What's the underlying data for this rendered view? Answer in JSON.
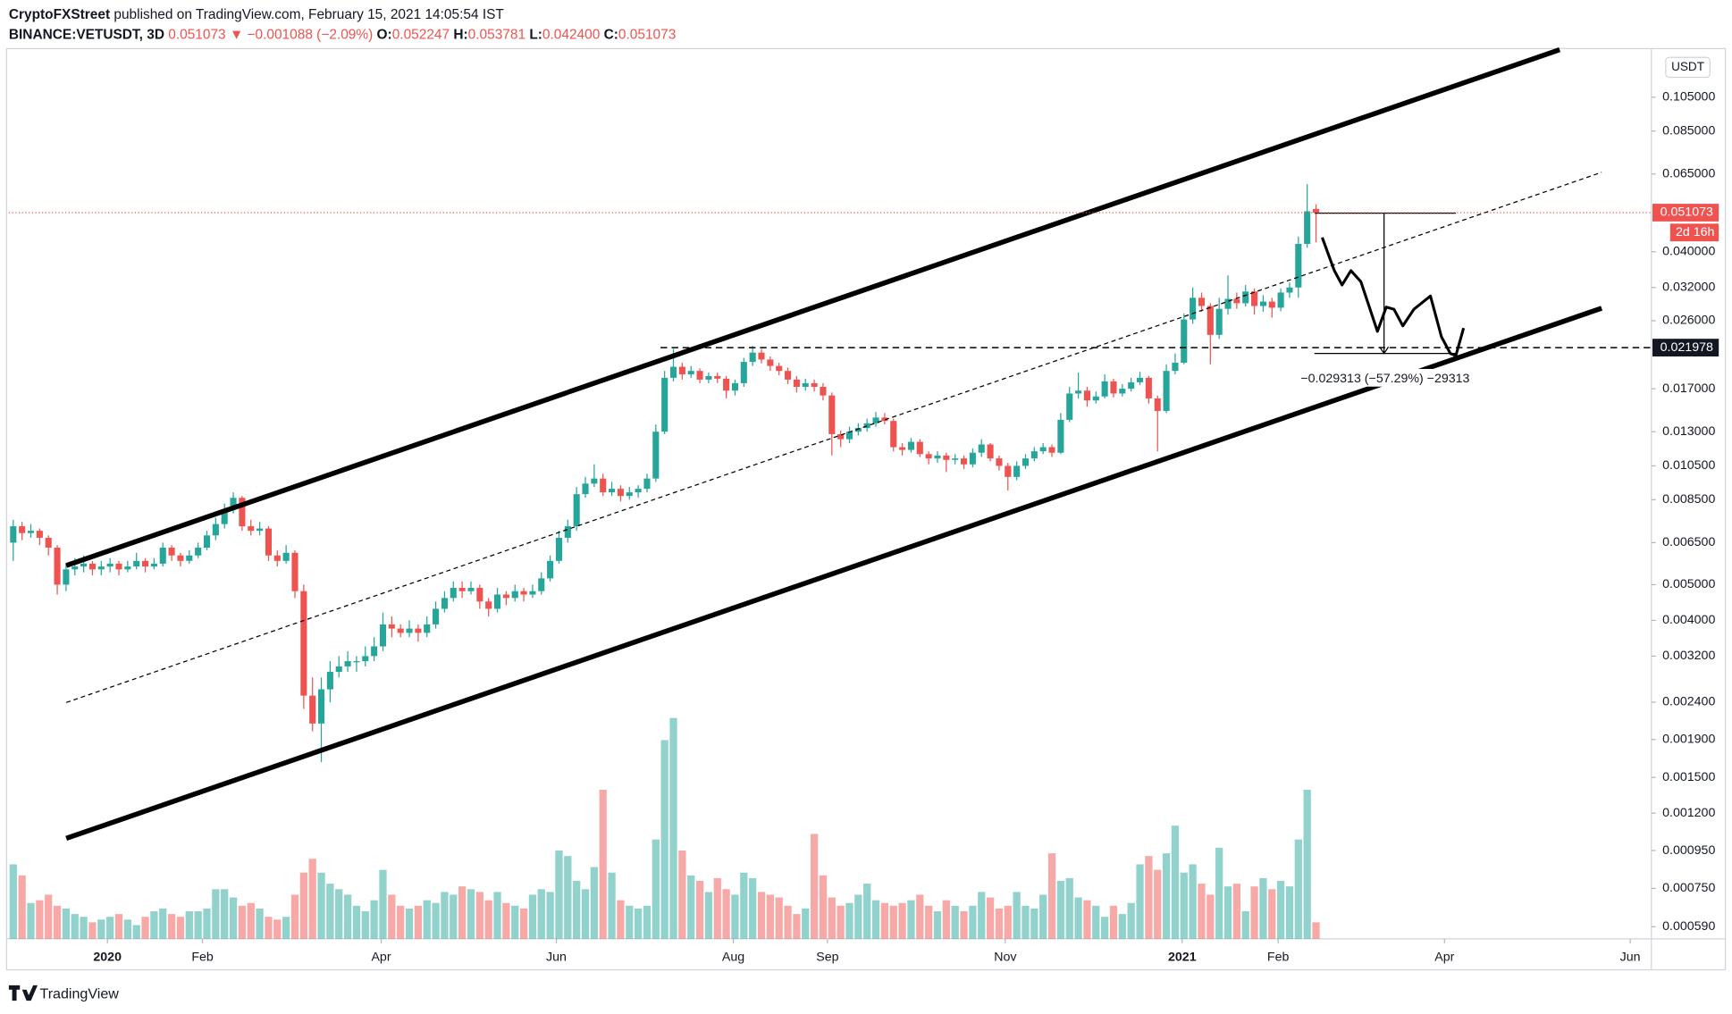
{
  "header": {
    "author": "CryptoFXStreet",
    "published": "published on TradingView.com, February 15, 2021 14:05:54 IST",
    "symbol": "BINANCE:VETUSDT, 3D",
    "last": "0.051073",
    "change": "▼ −0.001088 (−2.09%)",
    "ohlc": [
      {
        "key": "O:",
        "value": "0.052247"
      },
      {
        "key": "H:",
        "value": "0.053781"
      },
      {
        "key": "L:",
        "value": "0.042400"
      },
      {
        "key": "C:",
        "value": "0.051073"
      }
    ]
  },
  "footer": "TradingView",
  "chart_data": {
    "type": "candlestick",
    "currency": "USDT",
    "yscale": "log",
    "ylim": [
      0.000547,
      0.1384
    ],
    "yticks": [
      {
        "value": 0.105,
        "label": "0.105000"
      },
      {
        "value": 0.085,
        "label": "0.085000"
      },
      {
        "value": 0.065,
        "label": "0.065000"
      },
      {
        "value": 0.04,
        "label": "0.040000"
      },
      {
        "value": 0.032,
        "label": "0.032000"
      },
      {
        "value": 0.026,
        "label": "0.026000"
      },
      {
        "value": 0.017,
        "label": "0.017000"
      },
      {
        "value": 0.013,
        "label": "0.013000"
      },
      {
        "value": 0.0105,
        "label": "0.010500"
      },
      {
        "value": 0.0085,
        "label": "0.008500"
      },
      {
        "value": 0.0065,
        "label": "0.006500"
      },
      {
        "value": 0.005,
        "label": "0.005000"
      },
      {
        "value": 0.004,
        "label": "0.004000"
      },
      {
        "value": 0.0032,
        "label": "0.003200"
      },
      {
        "value": 0.0024,
        "label": "0.002400"
      },
      {
        "value": 0.0019,
        "label": "0.001900"
      },
      {
        "value": 0.0015,
        "label": "0.001500"
      },
      {
        "value": 0.0012,
        "label": "0.001200"
      },
      {
        "value": 0.00095,
        "label": "0.000950"
      },
      {
        "value": 0.00075,
        "label": "0.000750"
      },
      {
        "value": 0.00059,
        "label": "0.000590"
      }
    ],
    "xlim": [
      -0.5,
      186.1
    ],
    "xticks": [
      {
        "value": 10.7,
        "label": "2020"
      },
      {
        "value": 21.5,
        "label": "Feb"
      },
      {
        "value": 41.8,
        "label": "Apr"
      },
      {
        "value": 61.7,
        "label": "Jun"
      },
      {
        "value": 81.8,
        "label": "Aug"
      },
      {
        "value": 92.5,
        "label": "Sep"
      },
      {
        "value": 112.7,
        "label": "Nov"
      },
      {
        "value": 132.8,
        "label": "2021"
      },
      {
        "value": 143.7,
        "label": "Feb"
      },
      {
        "value": 162.6,
        "label": "Apr"
      },
      {
        "value": 183.7,
        "label": "Jun"
      }
    ],
    "up_color": "#26a69a",
    "down_color": "#ef5350",
    "open": [
      0.0065,
      0.0072,
      0.0069,
      0.007,
      0.0067,
      0.0063,
      0.005,
      0.0055,
      0.0056,
      0.0057,
      0.0055,
      0.0056,
      0.0057,
      0.0055,
      0.0056,
      0.0058,
      0.0056,
      0.0057,
      0.0063,
      0.006,
      0.0058,
      0.006,
      0.0063,
      0.0068,
      0.0073,
      0.008,
      0.0086,
      0.0072,
      0.007,
      0.0071,
      0.006,
      0.0058,
      0.0061,
      0.0048,
      0.0025,
      0.0021,
      0.0026,
      0.0029,
      0.003,
      0.0031,
      0.0031,
      0.0032,
      0.0034,
      0.0039,
      0.0038,
      0.0037,
      0.0038,
      0.0037,
      0.0039,
      0.0043,
      0.0046,
      0.0049,
      0.0048,
      0.0049,
      0.0045,
      0.0043,
      0.0047,
      0.0046,
      0.0048,
      0.0047,
      0.0048,
      0.0052,
      0.0058,
      0.0067,
      0.0072,
      0.0088,
      0.0094,
      0.0097,
      0.0089,
      0.0091,
      0.0087,
      0.0089,
      0.0091,
      0.0097,
      0.013,
      0.0182,
      0.0195,
      0.0186,
      0.019,
      0.018,
      0.0184,
      0.0181,
      0.0168,
      0.0176,
      0.0201,
      0.0213,
      0.0204,
      0.0196,
      0.019,
      0.018,
      0.0172,
      0.0176,
      0.0172,
      0.0163,
      0.0128,
      0.0124,
      0.013,
      0.0133,
      0.0137,
      0.0142,
      0.0139,
      0.0118,
      0.0116,
      0.0122,
      0.0113,
      0.011,
      0.0112,
      0.0109,
      0.011,
      0.0106,
      0.0114,
      0.012,
      0.011,
      0.0105,
      0.0098,
      0.0105,
      0.011,
      0.0115,
      0.0118,
      0.0114,
      0.014,
      0.0165,
      0.0168,
      0.0158,
      0.0162,
      0.0178,
      0.0165,
      0.017,
      0.0177,
      0.0182,
      0.016,
      0.0148,
      0.019,
      0.02,
      0.0262,
      0.03,
      0.0285,
      0.0238,
      0.028,
      0.0298,
      0.029,
      0.0312,
      0.0285,
      0.0293,
      0.0282,
      0.031,
      0.032,
      0.042,
      0.052247
    ],
    "high": [
      0.0075,
      0.0074,
      0.0073,
      0.0071,
      0.0068,
      0.0064,
      0.0057,
      0.0059,
      0.006,
      0.0058,
      0.0058,
      0.0059,
      0.0058,
      0.0058,
      0.0061,
      0.0059,
      0.0059,
      0.0065,
      0.0064,
      0.0061,
      0.0062,
      0.0065,
      0.007,
      0.0076,
      0.0083,
      0.0089,
      0.0087,
      0.0075,
      0.0074,
      0.0072,
      0.0062,
      0.0064,
      0.0062,
      0.005,
      0.0028,
      0.0028,
      0.0031,
      0.0032,
      0.0033,
      0.0032,
      0.0034,
      0.0036,
      0.0042,
      0.0041,
      0.0039,
      0.004,
      0.0039,
      0.0041,
      0.0045,
      0.0048,
      0.0051,
      0.0051,
      0.0051,
      0.005,
      0.0046,
      0.0049,
      0.0048,
      0.005,
      0.0049,
      0.005,
      0.0054,
      0.006,
      0.007,
      0.0075,
      0.0092,
      0.0098,
      0.0106,
      0.01,
      0.0095,
      0.0093,
      0.0092,
      0.0093,
      0.01,
      0.0136,
      0.019,
      0.0218,
      0.02,
      0.0196,
      0.0193,
      0.0188,
      0.0188,
      0.0184,
      0.018,
      0.0206,
      0.0222,
      0.0218,
      0.0208,
      0.02,
      0.0194,
      0.0184,
      0.0181,
      0.018,
      0.0176,
      0.0166,
      0.0131,
      0.0134,
      0.0137,
      0.0141,
      0.0147,
      0.0146,
      0.0141,
      0.0121,
      0.0125,
      0.0124,
      0.0115,
      0.0115,
      0.0114,
      0.0113,
      0.0112,
      0.0117,
      0.0124,
      0.0121,
      0.0112,
      0.0107,
      0.0108,
      0.0113,
      0.0118,
      0.0121,
      0.012,
      0.0146,
      0.0172,
      0.0188,
      0.0172,
      0.0167,
      0.0186,
      0.0181,
      0.0175,
      0.0182,
      0.0189,
      0.0184,
      0.0163,
      0.0198,
      0.0212,
      0.0272,
      0.032,
      0.031,
      0.029,
      0.03,
      0.0345,
      0.031,
      0.0325,
      0.0318,
      0.0305,
      0.03,
      0.0318,
      0.033,
      0.044,
      0.061,
      0.053781
    ],
    "low": [
      0.0058,
      0.0066,
      0.0067,
      0.0064,
      0.006,
      0.0047,
      0.0048,
      0.0053,
      0.0054,
      0.0053,
      0.0053,
      0.0054,
      0.0053,
      0.0054,
      0.0055,
      0.0054,
      0.0055,
      0.0056,
      0.0058,
      0.0056,
      0.0057,
      0.0059,
      0.0062,
      0.0066,
      0.0071,
      0.0078,
      0.007,
      0.0068,
      0.0068,
      0.0058,
      0.0056,
      0.0057,
      0.0046,
      0.0023,
      0.002,
      0.00165,
      0.0024,
      0.0028,
      0.0029,
      0.0029,
      0.003,
      0.0031,
      0.0033,
      0.0036,
      0.0036,
      0.0036,
      0.0035,
      0.0036,
      0.0038,
      0.0042,
      0.0045,
      0.0046,
      0.0047,
      0.0043,
      0.0041,
      0.0042,
      0.0044,
      0.0045,
      0.0045,
      0.0046,
      0.0047,
      0.0051,
      0.0057,
      0.0065,
      0.007,
      0.0086,
      0.0092,
      0.0087,
      0.0087,
      0.0084,
      0.0085,
      0.0086,
      0.0089,
      0.0095,
      0.0128,
      0.0178,
      0.018,
      0.0182,
      0.0176,
      0.0176,
      0.0176,
      0.016,
      0.0163,
      0.0172,
      0.0196,
      0.0199,
      0.019,
      0.0185,
      0.0175,
      0.0166,
      0.0168,
      0.0167,
      0.0158,
      0.0112,
      0.0118,
      0.0121,
      0.0127,
      0.013,
      0.0134,
      0.0136,
      0.0115,
      0.0112,
      0.0114,
      0.0111,
      0.0106,
      0.0107,
      0.0101,
      0.0106,
      0.0103,
      0.0104,
      0.0111,
      0.0108,
      0.0102,
      0.009,
      0.0096,
      0.0103,
      0.0108,
      0.0113,
      0.0111,
      0.0113,
      0.0138,
      0.016,
      0.0152,
      0.0155,
      0.016,
      0.0161,
      0.0162,
      0.0167,
      0.0174,
      0.0155,
      0.0115,
      0.0146,
      0.0186,
      0.0198,
      0.0255,
      0.0275,
      0.0198,
      0.0232,
      0.027,
      0.028,
      0.0284,
      0.027,
      0.0275,
      0.0265,
      0.0276,
      0.03,
      0.03,
      0.041,
      0.0424
    ],
    "close": [
      0.0072,
      0.0069,
      0.007,
      0.0067,
      0.0063,
      0.005,
      0.0055,
      0.0056,
      0.0057,
      0.0055,
      0.0056,
      0.0057,
      0.0055,
      0.0056,
      0.0058,
      0.0056,
      0.0057,
      0.0063,
      0.006,
      0.0058,
      0.006,
      0.0063,
      0.0068,
      0.0073,
      0.008,
      0.0086,
      0.0072,
      0.007,
      0.0071,
      0.006,
      0.0058,
      0.0061,
      0.0048,
      0.0025,
      0.0021,
      0.0026,
      0.0029,
      0.003,
      0.0031,
      0.0031,
      0.0032,
      0.0034,
      0.0039,
      0.0038,
      0.0037,
      0.0038,
      0.0037,
      0.0039,
      0.0043,
      0.0046,
      0.0049,
      0.0048,
      0.0049,
      0.0045,
      0.0043,
      0.0047,
      0.0046,
      0.0048,
      0.0047,
      0.0048,
      0.0052,
      0.0058,
      0.0067,
      0.0072,
      0.0088,
      0.0094,
      0.0097,
      0.0089,
      0.0091,
      0.0087,
      0.0089,
      0.0091,
      0.0097,
      0.013,
      0.0182,
      0.0195,
      0.0186,
      0.019,
      0.018,
      0.0184,
      0.0181,
      0.0168,
      0.0176,
      0.0201,
      0.0213,
      0.0204,
      0.0196,
      0.019,
      0.018,
      0.0172,
      0.0176,
      0.0172,
      0.0163,
      0.0128,
      0.0124,
      0.013,
      0.0133,
      0.0137,
      0.0142,
      0.0139,
      0.0118,
      0.0116,
      0.0122,
      0.0113,
      0.011,
      0.0112,
      0.0109,
      0.011,
      0.0106,
      0.0114,
      0.012,
      0.011,
      0.0105,
      0.0098,
      0.0105,
      0.011,
      0.0115,
      0.0118,
      0.0114,
      0.014,
      0.0165,
      0.0168,
      0.0158,
      0.0162,
      0.0178,
      0.0165,
      0.017,
      0.0177,
      0.0182,
      0.016,
      0.0148,
      0.019,
      0.02,
      0.0262,
      0.03,
      0.0285,
      0.0238,
      0.028,
      0.0298,
      0.029,
      0.0312,
      0.0285,
      0.0293,
      0.0282,
      0.031,
      0.032,
      0.042,
      0.0515,
      0.051073
    ],
    "volume_lim": [
      0,
      100
    ],
    "volume": [
      27,
      23,
      13,
      14,
      16,
      12,
      11,
      9,
      8,
      6,
      7,
      8,
      9,
      7,
      5,
      8,
      10,
      11,
      9,
      8,
      10,
      10,
      11,
      18,
      18,
      15,
      12,
      13,
      11,
      8,
      7,
      8,
      16,
      24,
      29,
      24,
      20,
      18,
      16,
      12,
      10,
      14,
      25,
      16,
      12,
      11,
      12,
      14,
      13,
      17,
      16,
      19,
      18,
      17,
      14,
      17,
      13,
      12,
      11,
      16,
      18,
      17,
      32,
      30,
      21,
      18,
      26,
      54,
      24,
      14,
      12,
      11,
      12,
      36,
      72,
      80,
      32,
      23,
      21,
      17,
      22,
      18,
      16,
      24,
      22,
      17,
      16,
      15,
      12,
      9,
      11,
      38,
      23,
      15,
      12,
      13,
      16,
      20,
      14,
      13,
      12,
      13,
      14,
      16,
      12,
      10,
      14,
      12,
      10,
      12,
      17,
      15,
      11,
      12,
      17,
      12,
      11,
      16,
      31,
      21,
      22,
      15,
      14,
      12,
      8,
      12,
      9,
      13,
      27,
      30,
      25,
      31,
      41,
      24,
      27,
      20,
      16,
      33,
      19,
      20,
      10,
      19,
      22,
      18,
      21,
      19,
      36,
      54,
      6
    ],
    "last_price": {
      "value": 0.051073,
      "label": "0.051073"
    },
    "countdown": "2d 16h",
    "hline": {
      "value": 0.021978,
      "label": "0.021978"
    },
    "measure_label": "−0.029313 (−57.29%) −29313"
  }
}
